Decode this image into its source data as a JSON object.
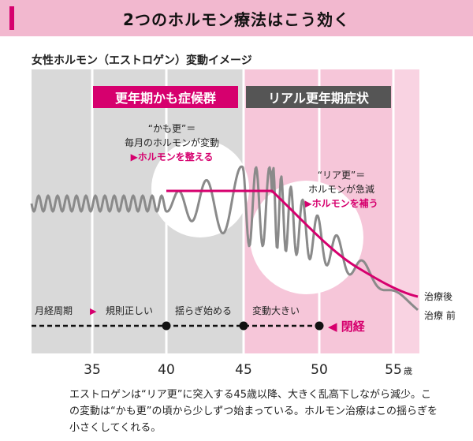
{
  "header": {
    "title": "2つのホルモン療法はこう効く"
  },
  "chart_title": "女性ホルモン（エストロゲン）変動イメージ",
  "phases": {
    "kamo": "更年期かも症候群",
    "riaru": "リアル更年期症状"
  },
  "annotation_kamo": {
    "line1": "“かも更”＝",
    "line2": "毎月のホルモンが変動",
    "line3": "▶ホルモンを整える"
  },
  "annotation_riaru": {
    "line1": "“リア更”＝",
    "line2": "ホルモンが急減",
    "line3": "▶ホルモンを補う"
  },
  "curve_labels": {
    "after": "治療後",
    "before": "治療 前"
  },
  "cycle_row": {
    "label": "月経周期",
    "arrow": "▶",
    "stage1": "規則正しい",
    "stage2": "揺らぎ始める",
    "stage3": "変動大きい",
    "end": "◀ 閉経"
  },
  "x_axis": {
    "ticks": [
      "35",
      "40",
      "45",
      "50",
      "55"
    ],
    "unit": "歳"
  },
  "caption": "エストロゲンは“リア更”に突入する45歳以降、大きく乱高下しながら減少。この変動は“かも更”の頃から少しずつ始まっている。ホルモン治療はこの揺らぎを小さくしてくれる。",
  "colors": {
    "accent": "#d6006e",
    "header_bg": "#f2b8cf",
    "gray_band": "#d9d9d9",
    "pink_band": "#f6c6d9",
    "pink_band_light": "#fadbe7",
    "dark_label": "#555555",
    "curve_gray": "#8a8a8a"
  },
  "chart_data": {
    "type": "line",
    "x": [
      31,
      40,
      45,
      47,
      50,
      53,
      56
    ],
    "series": [
      {
        "name": "治療後",
        "values": [
          null,
          1.0,
          1.0,
          1.0,
          0.55,
          0.25,
          0.15
        ]
      },
      {
        "name": "治療 前",
        "values": [
          1.0,
          1.0,
          1.0,
          1.0,
          0.5,
          0.2,
          0.05
        ]
      }
    ],
    "xlim": [
      31,
      56
    ],
    "xlabel": "歳"
  }
}
